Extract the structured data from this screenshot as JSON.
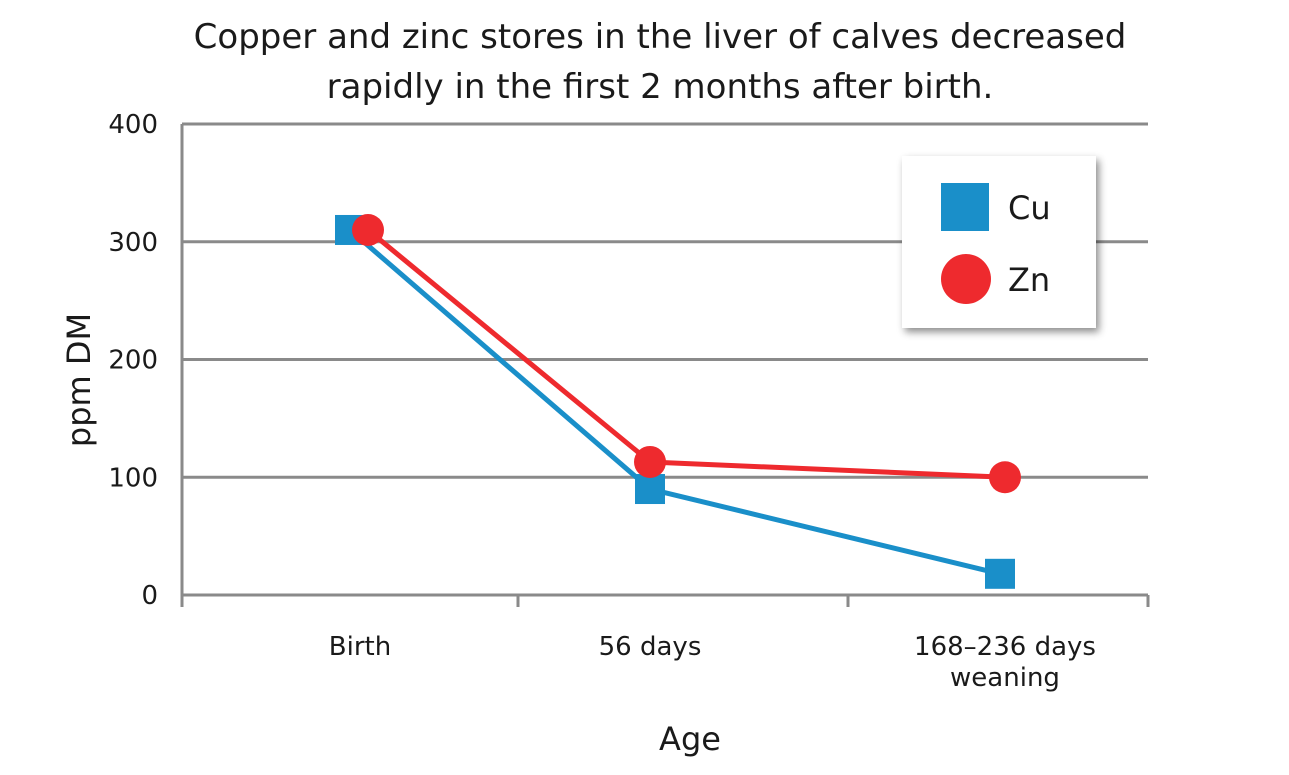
{
  "chart_data": {
    "type": "line",
    "title_lines": [
      "Copper and zinc stores in the liver of calves decreased",
      "rapidly in the first 2 months after birth."
    ],
    "xlabel": "Age",
    "ylabel": "ppm DM",
    "categories": [
      [
        "Birth"
      ],
      [
        "56 days"
      ],
      [
        "168–236 days",
        "weaning"
      ]
    ],
    "ylim": [
      0,
      400
    ],
    "yticks": [
      0,
      100,
      200,
      300,
      400
    ],
    "grid": true,
    "legend_position": "top-right",
    "series": [
      {
        "name": "Cu",
        "marker": "square",
        "color": "#1a8fc9",
        "values": [
          310,
          90,
          18
        ]
      },
      {
        "name": "Zn",
        "marker": "circle",
        "color": "#ee2a2e",
        "values": [
          310,
          113,
          100
        ]
      }
    ]
  }
}
